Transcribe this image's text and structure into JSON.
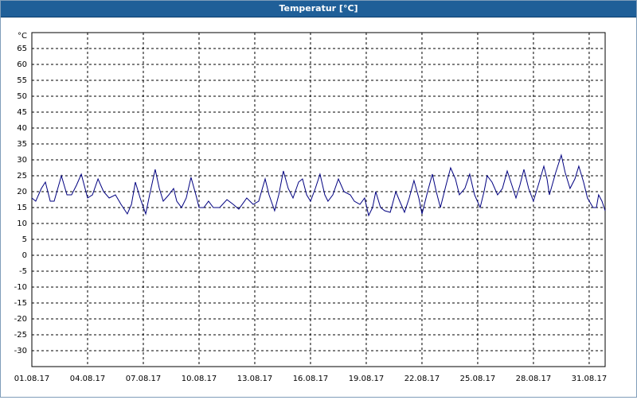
{
  "chart_data": {
    "type": "line",
    "title": "Temperatur [°C]",
    "y_unit": "°C",
    "x": [
      1.0,
      1.21,
      1.51,
      1.73,
      1.99,
      2.2,
      2.59,
      2.89,
      3.14,
      3.4,
      3.66,
      4.0,
      4.26,
      4.56,
      4.86,
      5.16,
      5.5,
      5.8,
      6.14,
      6.36,
      6.57,
      6.83,
      7.13,
      7.34,
      7.64,
      7.86,
      8.07,
      8.37,
      8.63,
      8.8,
      9.06,
      9.31,
      9.57,
      9.83,
      10.0,
      10.26,
      10.51,
      10.77,
      11.11,
      11.5,
      11.84,
      12.14,
      12.57,
      12.91,
      13.21,
      13.56,
      13.77,
      14.07,
      14.29,
      14.54,
      14.8,
      15.06,
      15.36,
      15.57,
      15.79,
      16.0,
      16.26,
      16.51,
      16.77,
      16.94,
      17.2,
      17.5,
      17.8,
      18.14,
      18.36,
      18.66,
      18.91,
      19.13,
      19.34,
      19.51,
      19.77,
      19.99,
      20.29,
      20.59,
      20.8,
      21.06,
      21.31,
      21.57,
      21.83,
      22.0,
      22.3,
      22.56,
      22.77,
      22.99,
      23.29,
      23.54,
      23.8,
      24.01,
      24.31,
      24.57,
      24.83,
      25.13,
      25.34,
      25.51,
      25.77,
      26.07,
      26.33,
      26.59,
      26.84,
      27.06,
      27.27,
      27.49,
      27.74,
      28.0,
      28.26,
      28.56,
      28.73,
      28.86,
      29.2,
      29.5,
      29.71,
      29.97,
      30.23,
      30.44,
      30.7,
      30.91,
      31.21,
      31.39,
      31.51,
      31.69,
      31.86
    ],
    "series": [
      {
        "name": "Temperatur",
        "color": "#000080",
        "values": [
          18,
          17,
          21,
          23,
          17,
          17,
          25,
          19,
          19,
          22,
          25.5,
          18,
          19,
          24,
          20,
          18,
          19,
          16,
          13,
          16,
          23,
          18,
          13,
          19,
          27,
          21,
          17,
          19,
          21,
          17,
          15,
          18,
          24.5,
          19,
          15,
          15,
          17,
          15,
          15,
          17.5,
          16,
          14.5,
          18,
          16,
          17,
          24,
          19,
          14,
          19,
          26.5,
          21,
          18,
          23,
          24,
          19,
          17,
          21,
          25.5,
          19,
          17,
          19,
          24,
          20,
          19,
          17,
          16,
          18,
          12.5,
          15,
          20,
          15,
          14,
          13.5,
          20,
          17,
          13.5,
          18,
          23.5,
          18,
          13,
          20,
          25.5,
          20,
          15,
          22,
          27.5,
          24,
          19,
          21,
          25.5,
          19,
          15,
          20,
          25,
          23,
          19,
          21,
          26.5,
          22,
          18,
          22,
          27,
          21,
          17,
          22,
          28,
          24,
          19,
          26,
          31.5,
          26,
          21,
          24,
          28,
          23,
          18,
          15,
          15,
          19,
          17,
          14
        ]
      }
    ],
    "xlim": [
      1,
      31.86
    ],
    "xticks": [
      {
        "value": 1,
        "label": "01.08.17"
      },
      {
        "value": 4,
        "label": "04.08.17"
      },
      {
        "value": 7,
        "label": "07.08.17"
      },
      {
        "value": 10,
        "label": "10.08.17"
      },
      {
        "value": 13,
        "label": "13.08.17"
      },
      {
        "value": 16,
        "label": "16.08.17"
      },
      {
        "value": 19,
        "label": "19.08.17"
      },
      {
        "value": 22,
        "label": "22.08.17"
      },
      {
        "value": 25,
        "label": "25.08.17"
      },
      {
        "value": 28,
        "label": "28.08.17"
      },
      {
        "value": 31,
        "label": "31.08.17"
      }
    ],
    "ylim": [
      -35,
      70
    ],
    "yticks": [
      -30,
      -25,
      -20,
      -15,
      -10,
      -5,
      0,
      5,
      10,
      15,
      20,
      25,
      30,
      35,
      40,
      45,
      50,
      55,
      60,
      65
    ],
    "grid": true
  }
}
